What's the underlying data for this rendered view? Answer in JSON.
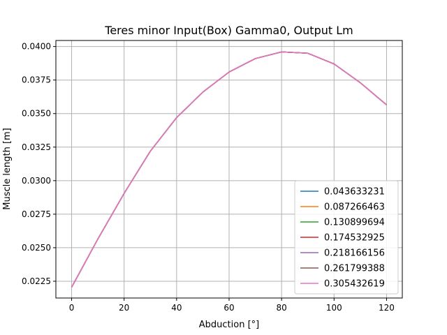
{
  "chart_data": {
    "type": "line",
    "title": "Teres minor Input(Box) Gamma0, Output Lm",
    "xlabel": "Abduction [°]",
    "ylabel": "Muscle length [m]",
    "xlim": [
      -6,
      126
    ],
    "ylim": [
      0.02125,
      0.04045
    ],
    "xticks": [
      0,
      20,
      40,
      60,
      80,
      100,
      120
    ],
    "xtick_labels": [
      "0",
      "20",
      "40",
      "60",
      "80",
      "100",
      "120"
    ],
    "yticks": [
      0.0225,
      0.025,
      0.0275,
      0.03,
      0.0325,
      0.035,
      0.0375,
      0.04
    ],
    "ytick_labels": [
      "0.0225",
      "0.0250",
      "0.0275",
      "0.0300",
      "0.0325",
      "0.0350",
      "0.0375",
      "0.0400"
    ],
    "grid": true,
    "legend_position": "lower-right",
    "x": [
      0,
      10,
      20,
      30,
      40,
      50,
      60,
      70,
      80,
      90,
      100,
      110,
      120
    ],
    "series": [
      {
        "name": "0.043633231",
        "color": "#1f77b4",
        "values": [
          0.02205,
          0.02565,
          0.02905,
          0.0322,
          0.0347,
          0.0366,
          0.0381,
          0.0391,
          0.0396,
          0.0395,
          0.0387,
          0.0373,
          0.03565
        ]
      },
      {
        "name": "0.087266463",
        "color": "#ff7f0e",
        "values": [
          0.02205,
          0.02565,
          0.02905,
          0.0322,
          0.0347,
          0.0366,
          0.0381,
          0.0391,
          0.0396,
          0.0395,
          0.0387,
          0.0373,
          0.03565
        ]
      },
      {
        "name": "0.130899694",
        "color": "#2ca02c",
        "values": [
          0.02205,
          0.02565,
          0.02905,
          0.0322,
          0.0347,
          0.0366,
          0.0381,
          0.0391,
          0.0396,
          0.0395,
          0.0387,
          0.0373,
          0.03565
        ]
      },
      {
        "name": "0.174532925",
        "color": "#d62728",
        "values": [
          0.02205,
          0.02565,
          0.02905,
          0.0322,
          0.0347,
          0.0366,
          0.0381,
          0.0391,
          0.0396,
          0.0395,
          0.0387,
          0.0373,
          0.03565
        ]
      },
      {
        "name": "0.218166156",
        "color": "#9467bd",
        "values": [
          0.02205,
          0.02565,
          0.02905,
          0.0322,
          0.0347,
          0.0366,
          0.0381,
          0.0391,
          0.0396,
          0.0395,
          0.0387,
          0.0373,
          0.03565
        ]
      },
      {
        "name": "0.261799388",
        "color": "#8c564b",
        "values": [
          0.02205,
          0.02565,
          0.02905,
          0.0322,
          0.0347,
          0.0366,
          0.0381,
          0.0391,
          0.0396,
          0.0395,
          0.0387,
          0.0373,
          0.03565
        ]
      },
      {
        "name": "0.305432619",
        "color": "#e377c2",
        "values": [
          0.02205,
          0.02565,
          0.02905,
          0.0322,
          0.0347,
          0.0366,
          0.0381,
          0.0391,
          0.0396,
          0.0395,
          0.0387,
          0.0373,
          0.03565
        ]
      }
    ]
  }
}
